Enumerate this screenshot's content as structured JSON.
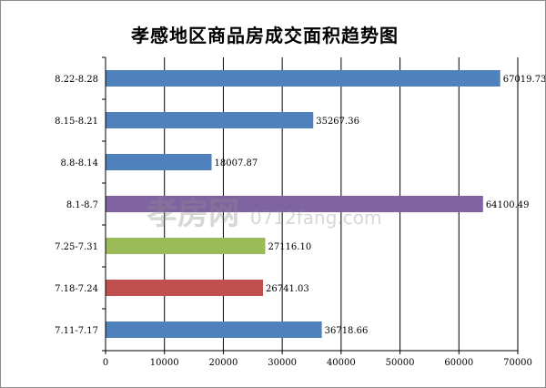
{
  "chart_data": {
    "type": "bar",
    "orientation": "horizontal",
    "title": "孝感地区商品房成交面积趋势图",
    "categories": [
      "8.22-8.28",
      "8.15-8.21",
      "8.8-8.14",
      "8.1-8.7",
      "7.25-7.31",
      "7.18-7.24",
      "7.11-7.17"
    ],
    "values": [
      67019.73,
      35267.36,
      18007.87,
      64100.49,
      27116.1,
      26741.03,
      36718.66
    ],
    "value_labels": [
      "67019.73",
      "35267.36",
      "18007.87",
      "64100.49",
      "27116.10",
      "26741.03",
      "36718.66"
    ],
    "bar_colors": [
      "#4f81bd",
      "#4f81bd",
      "#4f81bd",
      "#8064a2",
      "#9bbb59",
      "#c0504d",
      "#4f81bd"
    ],
    "xlim": [
      0,
      70000
    ],
    "x_ticks": [
      0,
      10000,
      20000,
      30000,
      40000,
      50000,
      60000,
      70000
    ],
    "x_tick_labels": [
      "0",
      "10000",
      "20000",
      "30000",
      "40000",
      "50000",
      "60000",
      "70000"
    ],
    "xlabel": "",
    "ylabel": "",
    "grid": "vertical",
    "legend": "none"
  },
  "watermark": {
    "brand": "孝房网",
    "site": "0712fang.com"
  }
}
